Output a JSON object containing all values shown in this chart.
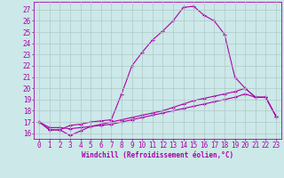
{
  "xlabel": "Windchill (Refroidissement éolien,°C)",
  "bg_color": "#cce8e8",
  "grid_color": "#b0c8c8",
  "line_color": "#aa00aa",
  "xlim": [
    -0.5,
    23.5
  ],
  "ylim": [
    15.5,
    27.7
  ],
  "xticks": [
    0,
    1,
    2,
    3,
    4,
    5,
    6,
    7,
    8,
    9,
    10,
    11,
    12,
    13,
    14,
    15,
    16,
    17,
    18,
    19,
    20,
    21,
    22,
    23
  ],
  "yticks": [
    16,
    17,
    18,
    19,
    20,
    21,
    22,
    23,
    24,
    25,
    26,
    27
  ],
  "line1_x": [
    0,
    1,
    2,
    3,
    4,
    5,
    6,
    7,
    8,
    9,
    10,
    11,
    12,
    13,
    14,
    15,
    16,
    17,
    18,
    19,
    20,
    21,
    22,
    23
  ],
  "line1_y": [
    17.0,
    16.3,
    16.3,
    16.7,
    16.8,
    17.0,
    17.1,
    17.2,
    19.5,
    22.0,
    23.2,
    24.3,
    25.1,
    26.0,
    27.2,
    27.3,
    26.5,
    26.0,
    24.8,
    21.0,
    20.0,
    19.2,
    19.2,
    17.5
  ],
  "line2_x": [
    0,
    1,
    2,
    3,
    4,
    5,
    6,
    7,
    8,
    9,
    10,
    11,
    12,
    13,
    14,
    15,
    16,
    17,
    18,
    19,
    20,
    21,
    22,
    23
  ],
  "line2_y": [
    17.0,
    16.3,
    16.3,
    15.8,
    16.2,
    16.6,
    16.8,
    17.0,
    17.2,
    17.4,
    17.6,
    17.8,
    18.0,
    18.3,
    18.6,
    18.9,
    19.1,
    19.3,
    19.5,
    19.7,
    20.0,
    19.2,
    19.2,
    17.5
  ],
  "line3_x": [
    0,
    1,
    2,
    3,
    4,
    5,
    6,
    7,
    8,
    9,
    10,
    11,
    12,
    13,
    14,
    15,
    16,
    17,
    18,
    19,
    20,
    21,
    22,
    23
  ],
  "line3_y": [
    17.0,
    16.5,
    16.5,
    16.4,
    16.5,
    16.6,
    16.7,
    16.8,
    17.0,
    17.2,
    17.4,
    17.6,
    17.8,
    18.0,
    18.2,
    18.4,
    18.6,
    18.8,
    19.0,
    19.2,
    19.5,
    19.2,
    19.2,
    17.5
  ],
  "tick_fontsize": 5.5,
  "xlabel_fontsize": 5.5
}
